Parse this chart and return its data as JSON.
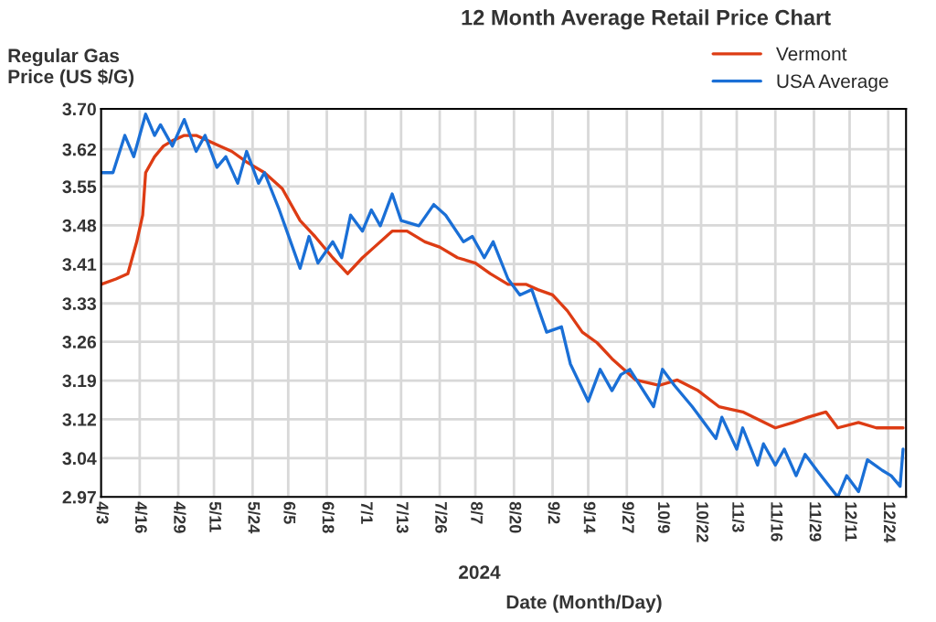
{
  "chart_data": {
    "type": "line",
    "title": "12 Month Average Retail Price Chart",
    "ylabel": "Regular Gas\nPrice (US $/G)",
    "xlabel": "Date (Month/Day)",
    "annotations": [
      "2024"
    ],
    "series": [
      {
        "name": "Vermont",
        "color": "#dd3c14",
        "x": [
          "2024-04-03",
          "2024-04-08",
          "2024-04-12",
          "2024-04-15",
          "2024-04-17",
          "2024-04-18",
          "2024-04-21",
          "2024-04-24",
          "2024-04-27",
          "2024-05-01",
          "2024-05-05",
          "2024-05-09",
          "2024-05-13",
          "2024-05-17",
          "2024-05-22",
          "2024-05-28",
          "2024-06-03",
          "2024-06-09",
          "2024-06-14",
          "2024-06-20",
          "2024-06-25",
          "2024-06-30",
          "2024-07-04",
          "2024-07-10",
          "2024-07-15",
          "2024-07-21",
          "2024-07-26",
          "2024-08-01",
          "2024-08-07",
          "2024-08-12",
          "2024-08-18",
          "2024-08-24",
          "2024-08-28",
          "2024-09-02",
          "2024-09-07",
          "2024-09-12",
          "2024-09-17",
          "2024-09-22",
          "2024-09-30",
          "2024-10-08",
          "2024-10-14",
          "2024-10-21",
          "2024-10-28",
          "2024-11-05",
          "2024-11-16",
          "2024-11-22",
          "2024-11-27",
          "2024-12-03",
          "2024-12-07",
          "2024-12-14",
          "2024-12-20",
          "2024-12-25",
          "2024-12-29"
        ],
        "values": [
          3.37,
          3.38,
          3.39,
          3.45,
          3.5,
          3.58,
          3.61,
          3.63,
          3.64,
          3.65,
          3.65,
          3.64,
          3.63,
          3.62,
          3.6,
          3.58,
          3.55,
          3.49,
          3.46,
          3.42,
          3.39,
          3.42,
          3.44,
          3.47,
          3.47,
          3.45,
          3.44,
          3.42,
          3.41,
          3.39,
          3.37,
          3.37,
          3.36,
          3.35,
          3.32,
          3.28,
          3.26,
          3.23,
          3.19,
          3.18,
          3.19,
          3.17,
          3.14,
          3.13,
          3.1,
          3.11,
          3.12,
          3.13,
          3.1,
          3.11,
          3.1,
          3.1,
          3.1
        ]
      },
      {
        "name": "USA Average",
        "color": "#1a6fd6",
        "x": [
          "2024-04-03",
          "2024-04-07",
          "2024-04-11",
          "2024-04-14",
          "2024-04-18",
          "2024-04-21",
          "2024-04-23",
          "2024-04-27",
          "2024-05-01",
          "2024-05-05",
          "2024-05-08",
          "2024-05-12",
          "2024-05-15",
          "2024-05-19",
          "2024-05-22",
          "2024-05-26",
          "2024-05-28",
          "2024-06-02",
          "2024-06-09",
          "2024-06-12",
          "2024-06-15",
          "2024-06-20",
          "2024-06-23",
          "2024-06-26",
          "2024-06-30",
          "2024-07-03",
          "2024-07-06",
          "2024-07-10",
          "2024-07-13",
          "2024-07-19",
          "2024-07-24",
          "2024-07-28",
          "2024-08-03",
          "2024-08-06",
          "2024-08-10",
          "2024-08-13",
          "2024-08-18",
          "2024-08-22",
          "2024-08-26",
          "2024-08-31",
          "2024-09-05",
          "2024-09-08",
          "2024-09-14",
          "2024-09-18",
          "2024-09-22",
          "2024-09-25",
          "2024-09-28",
          "2024-10-06",
          "2024-10-09",
          "2024-10-13",
          "2024-10-19",
          "2024-10-27",
          "2024-10-29",
          "2024-11-03",
          "2024-11-05",
          "2024-11-10",
          "2024-11-12",
          "2024-11-16",
          "2024-11-19",
          "2024-11-23",
          "2024-11-26",
          "2024-11-30",
          "2024-12-07",
          "2024-12-10",
          "2024-12-14",
          "2024-12-17",
          "2024-12-22",
          "2024-12-25",
          "2024-12-28",
          "2024-12-29"
        ],
        "values": [
          3.58,
          3.58,
          3.65,
          3.61,
          3.69,
          3.65,
          3.67,
          3.63,
          3.68,
          3.62,
          3.65,
          3.59,
          3.61,
          3.56,
          3.62,
          3.56,
          3.58,
          3.51,
          3.4,
          3.46,
          3.41,
          3.45,
          3.42,
          3.5,
          3.47,
          3.51,
          3.48,
          3.54,
          3.49,
          3.48,
          3.52,
          3.5,
          3.45,
          3.46,
          3.42,
          3.45,
          3.38,
          3.35,
          3.36,
          3.28,
          3.29,
          3.22,
          3.15,
          3.21,
          3.17,
          3.2,
          3.21,
          3.14,
          3.21,
          3.18,
          3.14,
          3.08,
          3.12,
          3.06,
          3.1,
          3.03,
          3.07,
          3.03,
          3.06,
          3.01,
          3.05,
          3.02,
          2.97,
          3.01,
          2.98,
          3.04,
          3.02,
          3.01,
          2.99,
          3.06
        ]
      }
    ],
    "xlim": [
      "2024-04-03",
      "2024-12-30"
    ],
    "xticks": [
      {
        "value": "2024-04-03",
        "label": "4/3"
      },
      {
        "value": "2024-04-16",
        "label": "4/16"
      },
      {
        "value": "2024-04-29",
        "label": "4/29"
      },
      {
        "value": "2024-05-11",
        "label": "5/11"
      },
      {
        "value": "2024-05-24",
        "label": "5/24"
      },
      {
        "value": "2024-06-05",
        "label": "6/5"
      },
      {
        "value": "2024-06-18",
        "label": "6/18"
      },
      {
        "value": "2024-07-01",
        "label": "7/1"
      },
      {
        "value": "2024-07-13",
        "label": "7/13"
      },
      {
        "value": "2024-07-26",
        "label": "7/26"
      },
      {
        "value": "2024-08-07",
        "label": "8/7"
      },
      {
        "value": "2024-08-20",
        "label": "8/20"
      },
      {
        "value": "2024-09-02",
        "label": "9/2"
      },
      {
        "value": "2024-09-14",
        "label": "9/14"
      },
      {
        "value": "2024-09-27",
        "label": "9/27"
      },
      {
        "value": "2024-10-09",
        "label": "10/9"
      },
      {
        "value": "2024-10-22",
        "label": "10/22"
      },
      {
        "value": "2024-11-03",
        "label": "11/3"
      },
      {
        "value": "2024-11-16",
        "label": "11/16"
      },
      {
        "value": "2024-11-29",
        "label": "11/29"
      },
      {
        "value": "2024-12-11",
        "label": "12/11"
      },
      {
        "value": "2024-12-24",
        "label": "12/24"
      }
    ],
    "ylim": [
      2.97,
      3.7
    ],
    "yticks": [
      2.97,
      {
        "value": 3.043,
        "label": "3.04"
      },
      {
        "value": 3.116,
        "label": "3.12"
      },
      {
        "value": 3.189,
        "label": "3.19"
      },
      {
        "value": 3.262,
        "label": "3.26"
      },
      {
        "value": 3.334,
        "label": "3.33"
      },
      {
        "value": 3.408,
        "label": "3.41"
      },
      {
        "value": 3.481,
        "label": "3.48"
      },
      {
        "value": 3.554,
        "label": "3.55"
      },
      {
        "value": 3.624,
        "label": "3.62"
      },
      {
        "value": 3.7,
        "label": "3.70"
      }
    ],
    "grid": true,
    "legend": "top right",
    "marker": "none",
    "line_style": "solid"
  }
}
